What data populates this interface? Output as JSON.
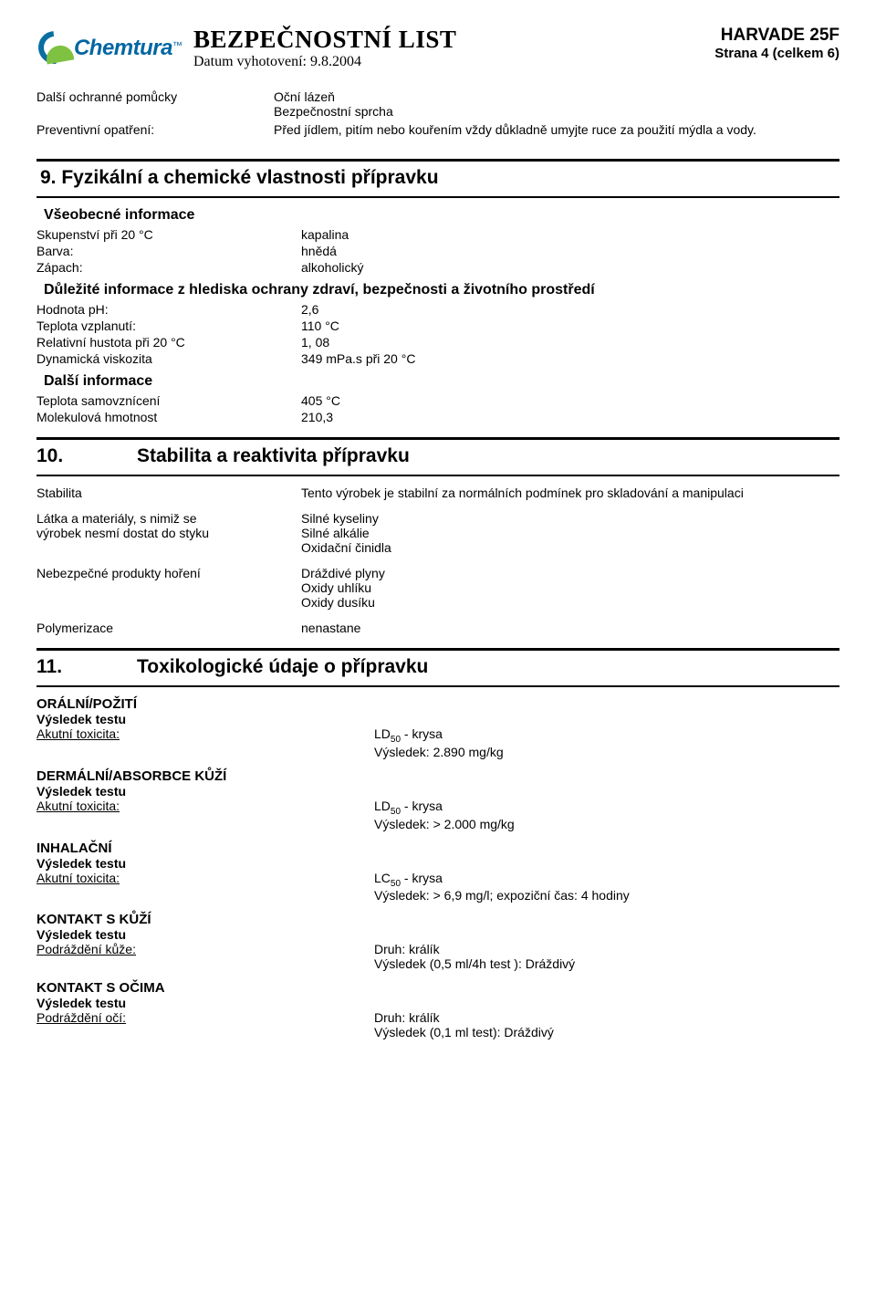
{
  "header": {
    "logo_text": "Chemtura",
    "logo_tm": "™",
    "doc_title": "BEZPEČNOSTNÍ LIST",
    "doc_date": "Datum vyhotovení: 9.8.2004",
    "product": "HARVADE 25F",
    "page": "Strana 4 (celkem 6)"
  },
  "intro": {
    "l1": "Další ochranné pomůcky",
    "v1a": "Oční lázeň",
    "v1b": "Bezpečnostní sprcha",
    "l2": "Preventivní opatření:",
    "v2": "Před jídlem, pitím nebo kouřením vždy důkladně umyjte ruce za použití mýdla a vody."
  },
  "section9": {
    "title": "9. Fyzikální a chemické vlastnosti přípravku",
    "sub1": "Všeobecné informace",
    "rows1": {
      "l1": "Skupenství při 20 °C",
      "v1": "kapalina",
      "l2": "Barva:",
      "v2": "hnědá",
      "l3": "Zápach:",
      "v3": "alkoholický"
    },
    "sub2": "Důležité informace z hlediska ochrany zdraví, bezpečnosti a životního prostředí",
    "rows2": {
      "l1": "Hodnota pH:",
      "v1": "2,6",
      "l2": "Teplota vzplanutí:",
      "v2": "110 °C",
      "l3": "Relativní hustota při 20 °C",
      "v3": "1, 08",
      "l4": "Dynamická viskozita",
      "v4": "349 mPa.s při 20 °C"
    },
    "sub3": "Další informace",
    "rows3": {
      "l1": "Teplota samovznícení",
      "v1": "405 °C",
      "l2": "Molekulová hmotnost",
      "v2": "210,3"
    }
  },
  "section10": {
    "number": "10.",
    "title": "Stabilita a reaktivita přípravku",
    "rows": {
      "l1": "Stabilita",
      "v1": "Tento výrobek je stabilní za normálních podmínek pro skladování a manipulaci",
      "l2a": "Látka a materiály, s nimiž se",
      "l2b": "výrobek nesmí dostat do styku",
      "v2a": "Silné kyseliny",
      "v2b": "Silné alkálie",
      "v2c": "Oxidační činidla",
      "l3": "Nebezpečné produkty hoření",
      "v3a": "Dráždivé plyny",
      "v3b": "Oxidy uhlíku",
      "v3c": "Oxidy dusíku",
      "l4": "Polymerizace",
      "v4": "nenastane"
    }
  },
  "section11": {
    "number": "11.",
    "title": "Toxikologické údaje o přípravku",
    "oral": {
      "heading": "ORÁLNÍ/POŽITÍ",
      "result_label": "Výsledek testu",
      "acute_label": "Akutní toxicita:",
      "line1a": "LD",
      "line1b": "50",
      "line1c": " - krysa",
      "line2": "Výsledek: 2.890 mg/kg"
    },
    "dermal": {
      "heading": "DERMÁLNÍ/ABSORBCE KŮŽÍ",
      "result_label": "Výsledek testu",
      "acute_label": "Akutní toxicita:",
      "line1a": "LD",
      "line1b": "50",
      "line1c": " - krysa",
      "line2": "Výsledek: > 2.000 mg/kg"
    },
    "inhal": {
      "heading": "INHALAČNÍ",
      "result_label": "Výsledek testu",
      "acute_label": "Akutní toxicita:",
      "line1a": "LC",
      "line1b": "50",
      "line1c": " - krysa",
      "line2": "Výsledek: > 6,9 mg/l; expoziční čas: 4 hodiny"
    },
    "skin": {
      "heading": "KONTAKT S KŮŽÍ",
      "result_label": "Výsledek testu",
      "irrit_label": "Podráždění kůže:",
      "line1": "Druh: králík",
      "line2": "Výsledek (0,5 ml/4h test ): Dráždivý"
    },
    "eyes": {
      "heading": "KONTAKT S OČIMA",
      "result_label": "Výsledek testu",
      "irrit_label": "Podráždění očí:",
      "line1": "Druh: králík",
      "line2": "Výsledek (0,1 ml test): Dráždivý"
    }
  }
}
